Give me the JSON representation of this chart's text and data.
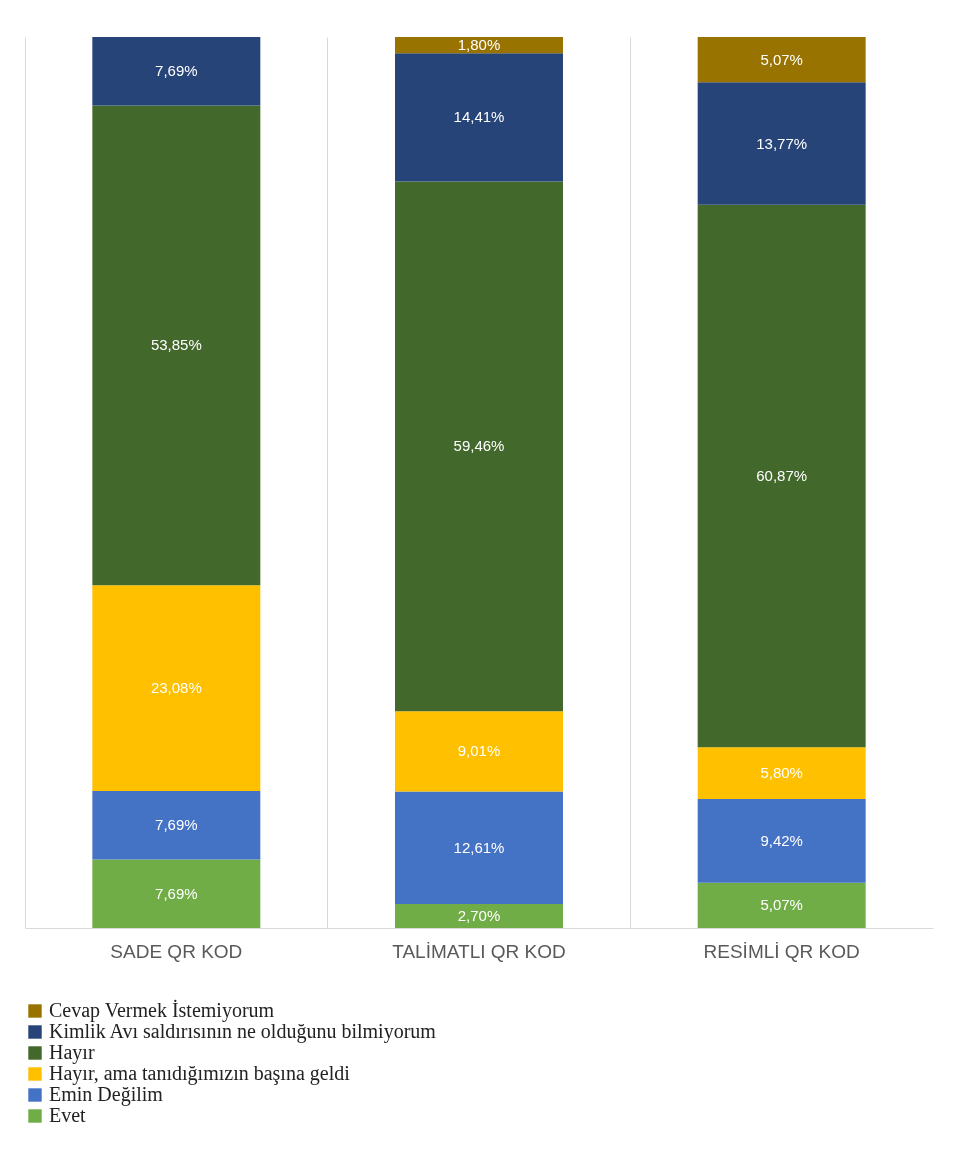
{
  "chart_data": {
    "type": "bar",
    "stacked": true,
    "categories": [
      "SADE QR KOD",
      "TALİMATLI QR KOD",
      "RESİMLİ QR KOD"
    ],
    "ylim": [
      0,
      100
    ],
    "tick_labels": "x",
    "grid": "x",
    "legend": "bottom",
    "series": [
      {
        "name": "Evet",
        "color": "#70ad47",
        "values": [
          7.69,
          2.7,
          5.07
        ],
        "value_labels": [
          "7,69%",
          "2,70%",
          "5,07%"
        ]
      },
      {
        "name": "Emin Değilim",
        "color": "#4472c4",
        "values": [
          7.69,
          12.61,
          9.42
        ],
        "value_labels": [
          "7,69%",
          "12,61%",
          "9,42%"
        ]
      },
      {
        "name": "Hayır, ama tanıdığımızın başına geldi",
        "color": "#ffc000",
        "values": [
          23.08,
          9.01,
          5.8
        ],
        "value_labels": [
          "23,08%",
          "9,01%",
          "5,80%"
        ]
      },
      {
        "name": "Hayır",
        "color": "#43682b",
        "values": [
          53.85,
          59.46,
          60.87
        ],
        "value_labels": [
          "53,85%",
          "59,46%",
          "60,87%"
        ]
      },
      {
        "name": "Kimlik Avı saldırısının ne olduğunu bilmiyorum",
        "color": "#264478",
        "values": [
          7.69,
          14.41,
          13.77
        ],
        "value_labels": [
          "7,69%",
          "14,41%",
          "13,77%"
        ]
      },
      {
        "name": "Cevap Vermek İstemiyorum",
        "color": "#997300",
        "values": [
          null,
          1.8,
          5.07
        ],
        "value_labels": [
          null,
          "1,80%",
          "5,07%"
        ]
      }
    ]
  }
}
